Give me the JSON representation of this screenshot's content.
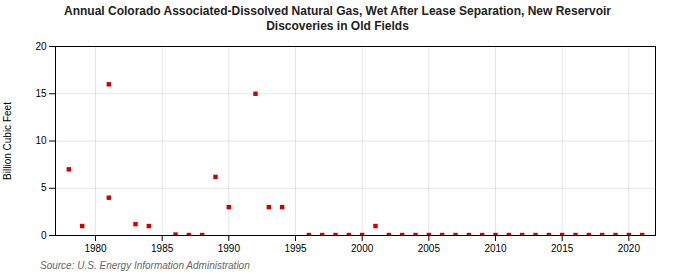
{
  "chart_data": {
    "type": "scatter",
    "title": "Annual Colorado Associated-Dissolved Natural Gas, Wet After Lease Separation, New Reservoir\nDiscoveries in Old Fields",
    "ylabel": "Billion Cubic Feet",
    "annotations": [
      "Source: U.S. Energy Information Administration"
    ],
    "color": "#cc0000",
    "marker": "square",
    "grid": true,
    "xlim": [
      1977,
      2022
    ],
    "ylim": [
      0,
      20
    ],
    "xticks": [
      1980,
      1985,
      1990,
      1995,
      2000,
      2005,
      2010,
      2015,
      2020
    ],
    "yticks": [
      0,
      5,
      10,
      15,
      20
    ],
    "x": [
      1978,
      1979,
      1981,
      1981,
      1983,
      1984,
      1986,
      1987,
      1988,
      1989,
      1990,
      1992,
      1993,
      1994,
      1996,
      1997,
      1998,
      1999,
      2000,
      2001,
      2002,
      2003,
      2004,
      2005,
      2006,
      2007,
      2008,
      2009,
      2010,
      2011,
      2012,
      2013,
      2014,
      2015,
      2016,
      2017,
      2018,
      2019,
      2020,
      2021
    ],
    "values": [
      7.0,
      1.0,
      16.0,
      4.0,
      1.2,
      1.0,
      0.1,
      0.05,
      0.05,
      6.2,
      3.0,
      15.0,
      3.0,
      3.0,
      0.05,
      0.05,
      0.05,
      0.05,
      0.05,
      1.0,
      0.05,
      0.05,
      0.05,
      0.05,
      0.05,
      0.05,
      0.05,
      0.05,
      0.05,
      0.05,
      0.05,
      0.05,
      0.05,
      0.05,
      0.05,
      0.05,
      0.05,
      0.05,
      0.05,
      0.05
    ]
  }
}
